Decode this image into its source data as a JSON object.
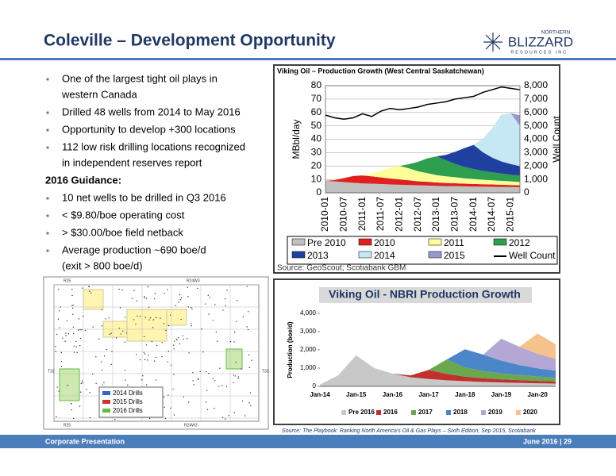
{
  "header": {
    "title": "Coleville – Development Opportunity"
  },
  "logo": {
    "top": "NORTHERN",
    "name": "BLIZZARD",
    "sub": "RESOURCES INC."
  },
  "bullets": [
    [
      "One of the largest tight oil plays in",
      "western Canada"
    ],
    [
      "Drilled 48 wells from 2014 to May 2016"
    ],
    [
      "Opportunity to develop +300 locations"
    ],
    [
      "112 low risk drilling locations recognized",
      "in independent reserves report"
    ]
  ],
  "guidance_heading": "2016 Guidance:",
  "guidance": [
    [
      "10 net wells to be drilled in Q3 2016"
    ],
    [
      "< $9.80/boe operating cost"
    ],
    [
      "> $30.00/boe field netback"
    ],
    [
      "Average production ~690 boe/d",
      "(exit > 800 boe/d)"
    ]
  ],
  "map": {
    "labels": [
      "R25",
      "R24W3",
      "T32",
      "T32",
      "R25",
      "R24W3"
    ],
    "legend": [
      {
        "name": "2014 Drills",
        "color": "#3366cc"
      },
      {
        "name": "2015 Drills",
        "color": "#cc3333"
      },
      {
        "name": "2016 Drills",
        "color": "#66bb44"
      }
    ]
  },
  "chart_data": [
    {
      "type": "area",
      "stacked": true,
      "title": "Viking Oil – Production Growth (West Central Saskatchewan)",
      "ylabel": "MBbl/day",
      "y2label": "Well Count",
      "source": "Source: GeoScout; Scotiabank GBM",
      "grid": true,
      "categories": [
        "2010-01",
        null,
        "2010-07",
        null,
        "2011-01",
        null,
        "2011-07",
        null,
        "2012-01",
        null,
        "2012-07",
        null,
        "2013-01",
        null,
        "2013-07",
        null,
        "2014-01",
        null,
        "2014-07",
        null,
        "2015-01",
        null
      ],
      "ylim": [
        0,
        80
      ],
      "yticks": [
        0,
        10,
        20,
        30,
        40,
        50,
        60,
        70,
        80
      ],
      "y2lim": [
        0,
        8000
      ],
      "y2ticks": [
        0,
        {
          "value": 1000,
          "label": "1,000"
        },
        {
          "value": 2000,
          "label": "2,000"
        },
        {
          "value": 3000,
          "label": "3,000"
        },
        {
          "value": 4000,
          "label": "4,000"
        },
        {
          "value": 5000,
          "label": "5,000"
        },
        {
          "value": 6000,
          "label": "6,000"
        },
        {
          "value": 7000,
          "label": "7,000"
        },
        {
          "value": 8000,
          "label": "8,000"
        }
      ],
      "series": [
        {
          "name": "Pre 2010",
          "color": "#c0c0c0",
          "values": [
            9,
            8.5,
            8,
            7.5,
            7,
            6.8,
            6.5,
            6.2,
            6,
            5.8,
            5.6,
            5.4,
            5.2,
            5,
            5,
            4.8,
            4.7,
            4.6,
            4.5,
            4.4,
            4.3,
            4.2
          ]
        },
        {
          "name": "2010",
          "color": "#e02020",
          "values": [
            0,
            1,
            3,
            5,
            6,
            5.5,
            5,
            4.5,
            4,
            3.5,
            3,
            2.8,
            2.5,
            2.3,
            2.1,
            2,
            1.9,
            1.8,
            1.7,
            1.6,
            1.5,
            1.4
          ]
        },
        {
          "name": "2011",
          "color": "#ffff99",
          "values": [
            0,
            0,
            0,
            0,
            0,
            2,
            5,
            8,
            10,
            9,
            7.5,
            6.5,
            5.5,
            5,
            4.5,
            4,
            3.7,
            3.4,
            3.1,
            2.9,
            2.7,
            2.5
          ]
        },
        {
          "name": "2012",
          "color": "#2e9e4f",
          "values": [
            0,
            0,
            0,
            0,
            0,
            0,
            0,
            0,
            0,
            3,
            7,
            11,
            14,
            12,
            10,
            8.5,
            7.5,
            6.5,
            6,
            5.5,
            5,
            4.8
          ]
        },
        {
          "name": "2013",
          "color": "#2040a0",
          "values": [
            0,
            0,
            0,
            0,
            0,
            0,
            0,
            0,
            0,
            0,
            0,
            0,
            0,
            4,
            9,
            14,
            18,
            14,
            11,
            9,
            8,
            7
          ]
        },
        {
          "name": "2014",
          "color": "#c6e8f5",
          "values": [
            0,
            0,
            0,
            0,
            0,
            0,
            0,
            0,
            0,
            0,
            0,
            0,
            0,
            0,
            0,
            0,
            0,
            10,
            22,
            35,
            38,
            30
          ]
        },
        {
          "name": "2015",
          "color": "#9999cc",
          "values": [
            0,
            0,
            0,
            0,
            0,
            0,
            0,
            0,
            0,
            0,
            0,
            0,
            0,
            0,
            0,
            0,
            0,
            0,
            0,
            0,
            0,
            8
          ]
        },
        {
          "name": "Well Count",
          "color": "#000000",
          "type": "line",
          "axis": "y2",
          "values": [
            5800,
            5600,
            5500,
            5600,
            5900,
            5700,
            6100,
            6300,
            6200,
            6300,
            6400,
            6600,
            6700,
            6800,
            7000,
            7100,
            7200,
            7500,
            7700,
            7900,
            7800,
            7700
          ]
        }
      ]
    },
    {
      "type": "area",
      "stacked": true,
      "title": "Viking Oil - NBRI Production Growth",
      "ylabel": "Production (boe/d)",
      "grid": false,
      "categories": [
        "Jan-14",
        null,
        "Jan-15",
        null,
        "Jan-16",
        null,
        "Jan-17",
        null,
        "Jan-18",
        null,
        "Jan-19",
        null,
        "Jan-20",
        null
      ],
      "ylim": [
        0,
        4000
      ],
      "yticks": [
        0,
        {
          "value": 1000,
          "label": "1,000"
        },
        {
          "value": 2000,
          "label": "2,000"
        },
        {
          "value": 3000,
          "label": "3,000"
        },
        {
          "value": 4000,
          "label": "4,000"
        }
      ],
      "series": [
        {
          "name": "Pre 2016",
          "color": "#c8c8c8",
          "values": [
            100,
            600,
            1700,
            1000,
            700,
            500,
            400,
            330,
            280,
            240,
            210,
            190,
            170,
            150
          ]
        },
        {
          "name": "2016",
          "color": "#c0302e",
          "values": [
            0,
            0,
            0,
            0,
            0,
            100,
            500,
            350,
            250,
            200,
            170,
            150,
            130,
            120
          ]
        },
        {
          "name": "2017",
          "color": "#6aa84f",
          "values": [
            0,
            0,
            0,
            0,
            0,
            0,
            0,
            800,
            500,
            400,
            330,
            280,
            240,
            210
          ]
        },
        {
          "name": "2018",
          "color": "#4a86c8",
          "values": [
            0,
            0,
            0,
            0,
            0,
            0,
            0,
            0,
            1000,
            900,
            700,
            550,
            450,
            380
          ]
        },
        {
          "name": "2019",
          "color": "#b4a7d6",
          "values": [
            0,
            0,
            0,
            0,
            0,
            0,
            0,
            0,
            0,
            0,
            1200,
            1000,
            800,
            650
          ]
        },
        {
          "name": "2020",
          "color": "#f6c28b",
          "values": [
            0,
            0,
            0,
            0,
            0,
            0,
            0,
            0,
            0,
            0,
            0,
            0,
            1100,
            800
          ]
        }
      ]
    }
  ],
  "source": "Source: The Playbook: Ranking North America's Oil & Gas Plays – Sixth Edition, Sep 2015, Scotiabank",
  "footer": {
    "left": "Corporate Presentation",
    "right": "June 2016 | 29"
  }
}
